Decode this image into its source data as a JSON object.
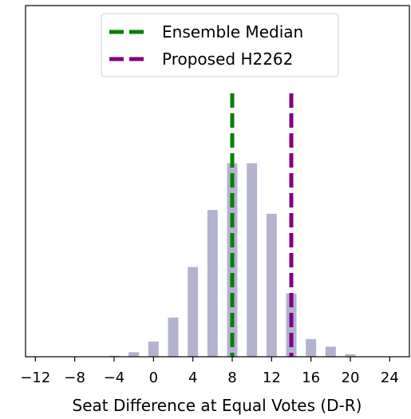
{
  "chart_data": {
    "type": "bar",
    "title": "",
    "xlabel": "Seat Difference at Equal Votes (D-R)",
    "ylabel": "",
    "xlim": [
      -13,
      26
    ],
    "ylim": [
      0,
      100
    ],
    "x_ticks": [
      -12,
      -8,
      -4,
      0,
      4,
      8,
      12,
      16,
      20,
      24
    ],
    "x_tick_labels": [
      "−12",
      "−8",
      "−4",
      "0",
      "4",
      "8",
      "12",
      "16",
      "20",
      "24"
    ],
    "grid": false,
    "legend_position": "top-center",
    "bar_color": "#b3b3cf",
    "bars": [
      {
        "x": -4,
        "value": 0.4
      },
      {
        "x": -2,
        "value": 1.8
      },
      {
        "x": 0,
        "value": 6.0
      },
      {
        "x": 2,
        "value": 15.5
      },
      {
        "x": 4,
        "value": 35.5
      },
      {
        "x": 6,
        "value": 58.0
      },
      {
        "x": 8,
        "value": 76.5
      },
      {
        "x": 10,
        "value": 76.5
      },
      {
        "x": 12,
        "value": 56.5
      },
      {
        "x": 14,
        "value": 25.0
      },
      {
        "x": 16,
        "value": 7.0
      },
      {
        "x": 18,
        "value": 4.0
      },
      {
        "x": 20,
        "value": 1.0
      }
    ],
    "vlines": [
      {
        "name": "Ensemble Median",
        "x": 8,
        "color": "#008000"
      },
      {
        "name": "Proposed H2262",
        "x": 14,
        "color": "#800080"
      }
    ]
  }
}
